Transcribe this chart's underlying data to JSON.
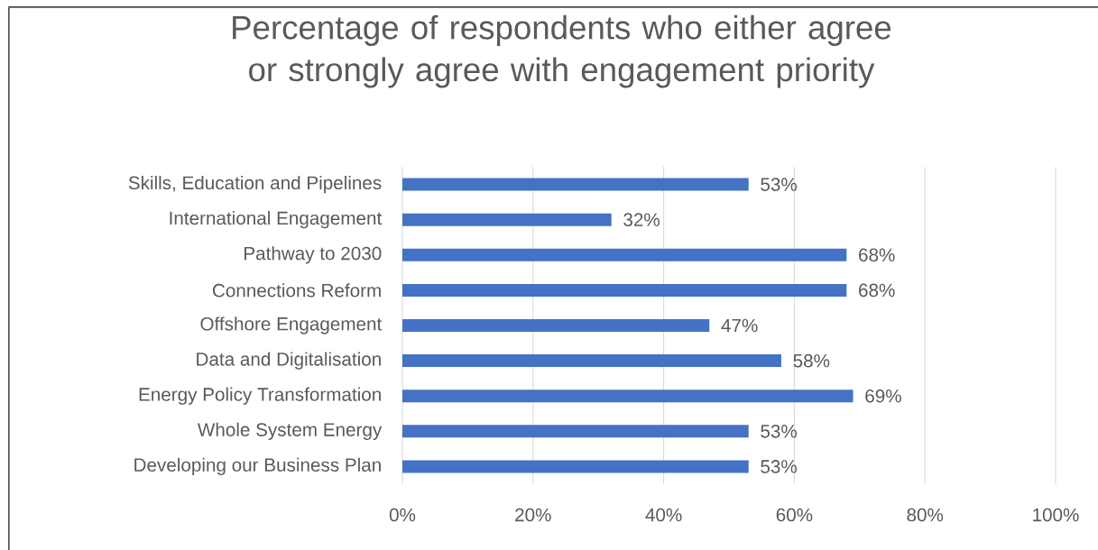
{
  "chart_data": {
    "type": "bar",
    "orientation": "horizontal",
    "title": "Percentage of respondents who either agree or strongly agree with engagement priority",
    "categories": [
      "Skills, Education and Pipelines",
      "International Engagement",
      "Pathway to 2030",
      "Connections Reform",
      "Offshore Engagement",
      "Data and Digitalisation",
      "Energy Policy Transformation",
      "Whole System Energy",
      "Developing our Business Plan"
    ],
    "values": [
      53,
      32,
      68,
      68,
      47,
      58,
      69,
      53,
      53
    ],
    "value_labels": [
      "53%",
      "32%",
      "68%",
      "68%",
      "47%",
      "58%",
      "69%",
      "53%",
      "53%"
    ],
    "color": "#4472c4",
    "xlim": [
      0,
      100
    ],
    "xticks": [
      {
        "value": 0,
        "label": "0%"
      },
      {
        "value": 20,
        "label": "20%"
      },
      {
        "value": 40,
        "label": "40%"
      },
      {
        "value": 60,
        "label": "60%"
      },
      {
        "value": 80,
        "label": "80%"
      },
      {
        "value": 100,
        "label": "100%"
      }
    ],
    "grid": "x"
  }
}
